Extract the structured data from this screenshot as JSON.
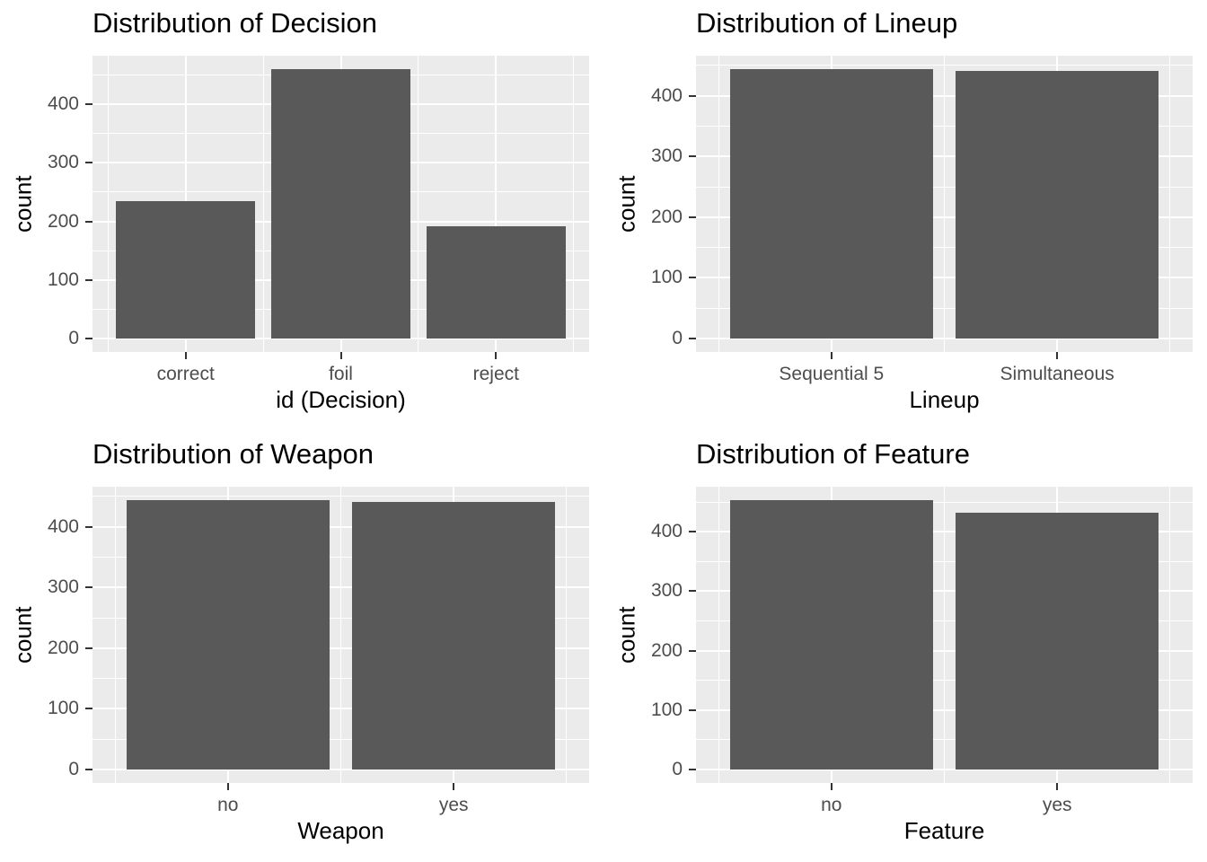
{
  "theme": {
    "background": "#FFFFFF",
    "panel_background": "#EBEBEB",
    "bar_fill": "#595959",
    "gridline_color": "#FFFFFF",
    "tick_mark_color": "#333333",
    "tick_label_color": "#4D4D4D",
    "title_color": "#000000",
    "axis_title_color": "#000000"
  },
  "chart_data": [
    {
      "type": "bar",
      "title": "Distribution of Decision",
      "xlabel": "id (Decision)",
      "ylabel": "count",
      "categories": [
        "correct",
        "foil",
        "reject"
      ],
      "values": [
        234,
        460,
        191
      ],
      "y_major_ticks": [
        0,
        100,
        200,
        300,
        400
      ],
      "y_minor_gridlines": [
        50,
        150,
        250,
        350,
        450
      ],
      "ylim": [
        -23,
        483
      ],
      "grid": true,
      "legend": "none"
    },
    {
      "type": "bar",
      "title": "Distribution of Lineup",
      "xlabel": "Lineup",
      "ylabel": "count",
      "categories": [
        "Sequential 5",
        "Simultaneous"
      ],
      "values": [
        444,
        441
      ],
      "y_major_ticks": [
        0,
        100,
        200,
        300,
        400
      ],
      "y_minor_gridlines": [
        50,
        150,
        250,
        350,
        450
      ],
      "ylim": [
        -22,
        466
      ],
      "grid": true,
      "legend": "none"
    },
    {
      "type": "bar",
      "title": "Distribution of Weapon",
      "xlabel": "Weapon",
      "ylabel": "count",
      "categories": [
        "no",
        "yes"
      ],
      "values": [
        444,
        441
      ],
      "y_major_ticks": [
        0,
        100,
        200,
        300,
        400
      ],
      "y_minor_gridlines": [
        50,
        150,
        250,
        350,
        450
      ],
      "ylim": [
        -22,
        466
      ],
      "grid": true,
      "legend": "none"
    },
    {
      "type": "bar",
      "title": "Distribution of Feature",
      "xlabel": "Feature",
      "ylabel": "count",
      "categories": [
        "no",
        "yes"
      ],
      "values": [
        453,
        432
      ],
      "y_major_ticks": [
        0,
        100,
        200,
        300,
        400
      ],
      "y_minor_gridlines": [
        50,
        150,
        250,
        350,
        450
      ],
      "ylim": [
        -23,
        476
      ],
      "grid": true,
      "legend": "none"
    }
  ]
}
